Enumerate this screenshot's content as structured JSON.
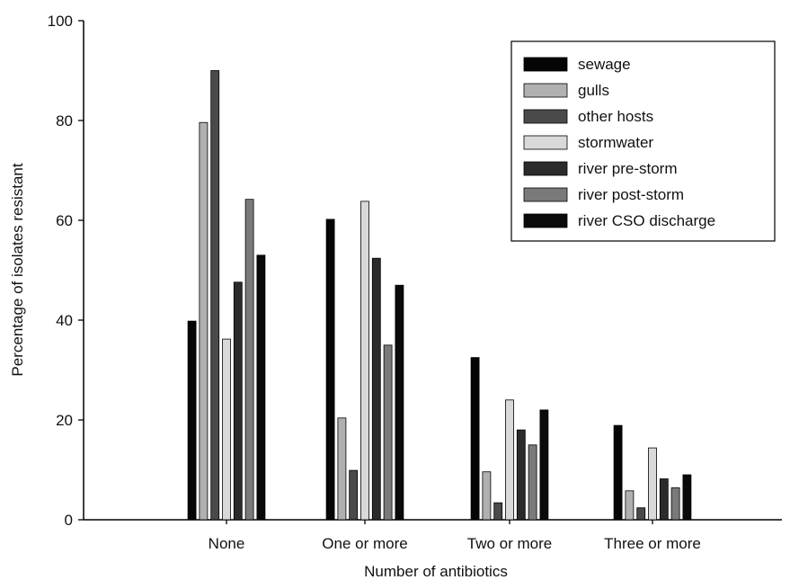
{
  "chart_data": {
    "type": "bar",
    "title": "",
    "xlabel": "Number of antibiotics",
    "ylabel": "Percentage of isolates resistant",
    "ylim": [
      0,
      100
    ],
    "yticks": [
      "0",
      "20",
      "40",
      "60",
      "80",
      "100"
    ],
    "grid": false,
    "legend_position": "top-right",
    "categories": [
      "None",
      "One or more",
      "Two or more",
      "Three or more"
    ],
    "series": [
      {
        "name": "sewage",
        "color": "#050505",
        "values": [
          39.8,
          60.2,
          32.5,
          18.9
        ]
      },
      {
        "name": "gulls",
        "color": "#b0b0b0",
        "values": [
          79.6,
          20.4,
          9.6,
          5.8
        ]
      },
      {
        "name": "other hosts",
        "color": "#4a4a4a",
        "values": [
          90.0,
          9.9,
          3.4,
          2.4
        ]
      },
      {
        "name": "stormwater",
        "color": "#d9d9d9",
        "values": [
          36.2,
          63.8,
          24.0,
          14.4
        ]
      },
      {
        "name": "river pre-storm",
        "color": "#2b2b2b",
        "values": [
          47.6,
          52.4,
          18.0,
          8.2
        ]
      },
      {
        "name": "river post-storm",
        "color": "#7a7a7a",
        "values": [
          64.2,
          35.0,
          15.0,
          6.4
        ]
      },
      {
        "name": "river CSO discharge",
        "color": "#0a0a0a",
        "values": [
          53.0,
          47.0,
          22.0,
          9.0
        ]
      }
    ]
  }
}
